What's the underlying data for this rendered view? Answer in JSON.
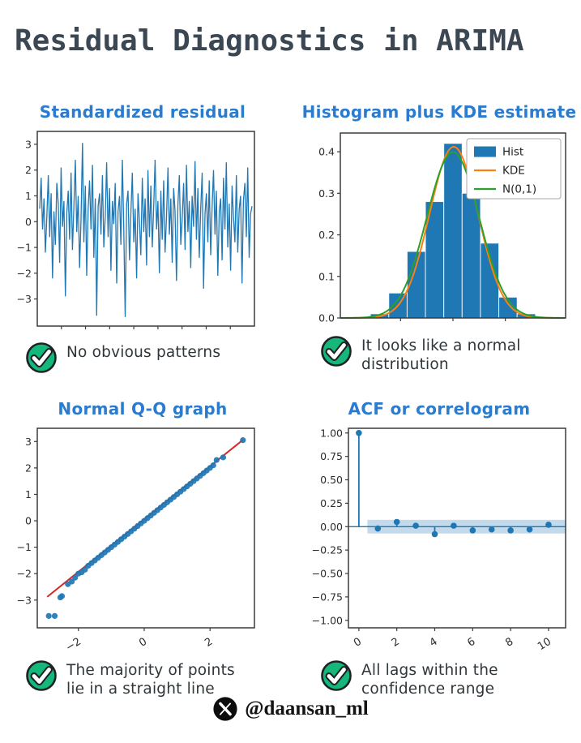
{
  "header": {
    "title": "Residual Diagnostics in ARIMA"
  },
  "footer": {
    "handle": "@daansan_ml",
    "logo": "x-logo"
  },
  "colors": {
    "accent_blue": "#1f77b4",
    "panel_title_blue": "#2b7bce",
    "kde_orange": "#ff7f0e",
    "normal_green": "#2ca02c",
    "qq_line_red": "#d62728",
    "check_green": "#14b87a",
    "ink": "#2f363a",
    "axis": "#3c3c3c",
    "band_blue": "#1f77b4"
  },
  "panels": [
    {
      "key": "residual",
      "title": "Standardized residual",
      "caption": "No obvious patterns"
    },
    {
      "key": "hist",
      "title": "Histogram plus KDE estimate",
      "caption": "It looks like a normal\ndistribution"
    },
    {
      "key": "qq",
      "title": "Normal Q-Q graph",
      "caption": "The majority of points\nlie in a straight line"
    },
    {
      "key": "acf",
      "title": "ACF or correlogram",
      "caption": "All lags within the\nconfidence range"
    }
  ],
  "chart_data": [
    {
      "type": "line",
      "title": "Standardized residual",
      "ylim": [
        -4.05,
        3.5
      ],
      "ytick_vals": [
        3,
        2,
        1,
        0,
        -1,
        -2,
        -3
      ],
      "ytick_labels": [
        "3",
        "2",
        "1",
        "0",
        "−1",
        "−2",
        "−3"
      ],
      "n_minor_xticks": 8,
      "line_color": "#1f77b4",
      "values": [
        0.5,
        1.7,
        -0.3,
        0.9,
        -1.2,
        0.2,
        1.8,
        -0.6,
        1.1,
        -2.2,
        0.4,
        -0.9,
        1.5,
        0.7,
        -1.6,
        2.1,
        -0.2,
        0.8,
        -2.9,
        0.3,
        1.2,
        -0.7,
        1.9,
        -1.1,
        0.6,
        2.4,
        -0.4,
        1.0,
        -1.8,
        0.1,
        3.05,
        -0.8,
        1.4,
        -2.1,
        0.5,
        1.6,
        -0.3,
        2.2,
        -1.4,
        0.9,
        -3.65,
        0.6,
        1.1,
        -0.5,
        1.8,
        -1.0,
        0.2,
        2.3,
        -0.6,
        1.3,
        -1.9,
        0.8,
        -0.1,
        1.5,
        -2.4,
        0.4,
        1.0,
        -0.9,
        2.4,
        -0.2,
        -3.7,
        0.7,
        1.2,
        -1.5,
        0.3,
        1.9,
        -0.8,
        0.5,
        -2.2,
        1.1,
        0.0,
        -1.3,
        1.7,
        -0.4,
        0.9,
        -1.7,
        2.0,
        -0.6,
        1.4,
        -1.0,
        0.6,
        2.4,
        -0.3,
        0.8,
        -2.0,
        1.2,
        -0.7,
        1.6,
        -1.2,
        0.2,
        2.1,
        -0.5,
        0.9,
        -1.6,
        1.3,
        0.4,
        -2.3,
        0.7,
        1.8,
        -0.9,
        0.1,
        1.5,
        -1.1,
        2.2,
        -0.4,
        0.8,
        -1.8,
        1.0,
        -0.2,
        2.35,
        -0.7,
        1.3,
        -1.4,
        0.5,
        1.9,
        -2.6,
        0.3,
        1.1,
        -0.8,
        1.6,
        -1.3,
        0.6,
        2.0,
        -0.5,
        1.2,
        -2.1,
        0.4,
        0.9,
        -1.5,
        1.7,
        -0.3,
        2.3,
        -1.0,
        0.7,
        -1.9,
        1.4,
        0.2,
        -0.8,
        1.8,
        -1.2,
        0.5,
        1.0,
        -2.4,
        0.8,
        1.5,
        -0.6,
        2.1,
        -1.4,
        0.3,
        0.6
      ]
    },
    {
      "type": "histogram",
      "title": "Histogram plus KDE estimate",
      "xlim": [
        -4.3,
        4.3
      ],
      "ylim": [
        0,
        0.445
      ],
      "ytick_vals": [
        0,
        0.1,
        0.2,
        0.3,
        0.4
      ],
      "ytick_labels": [
        "0.0",
        "0.1",
        "0.2",
        "0.3",
        "0.4"
      ],
      "xtick_vals": [
        -2,
        0,
        2
      ],
      "bin_edges": [
        -3.15,
        -2.45,
        -1.75,
        -1.05,
        -0.35,
        0.35,
        1.05,
        1.75,
        2.45,
        3.15
      ],
      "heights": [
        0.01,
        0.06,
        0.16,
        0.28,
        0.42,
        0.3,
        0.18,
        0.05,
        0.01
      ],
      "bar_color": "#1f77b4",
      "curves": [
        {
          "name": "KDE",
          "color": "#ff7f0e",
          "mean": 0.03,
          "sd": 0.93,
          "peak": 0.412
        },
        {
          "name": "N(0,1)",
          "color": "#2ca02c",
          "mean": 0,
          "sd": 1,
          "peak": 0.399
        }
      ],
      "legend": [
        "Hist",
        "KDE",
        "N(0,1)"
      ],
      "legend_position": "upper right"
    },
    {
      "type": "scatter",
      "title": "Normal Q-Q graph",
      "xlim": [
        -3.25,
        3.35
      ],
      "ylim": [
        -4.05,
        3.5
      ],
      "xtick_vals": [
        -2,
        0,
        2
      ],
      "xtick_labels": [
        "−2",
        "0",
        "2"
      ],
      "ytick_vals": [
        3,
        2,
        1,
        0,
        -1,
        -2,
        -3
      ],
      "ytick_labels": [
        "3",
        "2",
        "1",
        "0",
        "−1",
        "−2",
        "−3"
      ],
      "point_color": "#1f77b4",
      "line": {
        "x": [
          -2.95,
          3.0
        ],
        "y": [
          -2.88,
          3.06
        ],
        "color": "#d62728"
      },
      "x": [
        -2.9,
        -2.72,
        -2.55,
        -2.5,
        -2.32,
        -2.2,
        -2.1,
        -2.0,
        -1.9,
        -1.8,
        -1.7,
        -1.6,
        -1.5,
        -1.4,
        -1.3,
        -1.2,
        -1.1,
        -1.0,
        -0.9,
        -0.8,
        -0.7,
        -0.6,
        -0.5,
        -0.4,
        -0.3,
        -0.2,
        -0.1,
        0.0,
        0.1,
        0.2,
        0.3,
        0.4,
        0.5,
        0.6,
        0.7,
        0.8,
        0.9,
        1.0,
        1.1,
        1.2,
        1.3,
        1.4,
        1.5,
        1.6,
        1.7,
        1.8,
        1.9,
        2.0,
        2.1,
        2.2,
        2.4,
        3.0
      ],
      "y": [
        -3.6,
        -3.6,
        -2.9,
        -2.85,
        -2.4,
        -2.3,
        -2.15,
        -2.0,
        -1.95,
        -1.85,
        -1.7,
        -1.6,
        -1.5,
        -1.4,
        -1.3,
        -1.2,
        -1.1,
        -1.0,
        -0.9,
        -0.8,
        -0.7,
        -0.6,
        -0.5,
        -0.4,
        -0.3,
        -0.2,
        -0.1,
        0.0,
        0.1,
        0.2,
        0.3,
        0.4,
        0.5,
        0.6,
        0.7,
        0.8,
        0.9,
        1.0,
        1.1,
        1.2,
        1.3,
        1.4,
        1.5,
        1.6,
        1.7,
        1.8,
        1.9,
        2.0,
        2.1,
        2.3,
        2.4,
        3.05
      ]
    },
    {
      "type": "stem",
      "title": "ACF or correlogram",
      "xlim": [
        -0.55,
        10.9
      ],
      "ylim": [
        -1.08,
        1.05
      ],
      "ytick_vals": [
        1,
        0.75,
        0.5,
        0.25,
        0,
        -0.25,
        -0.5,
        -0.75,
        -1
      ],
      "ytick_labels": [
        "1.00",
        "0.75",
        "0.50",
        "0.25",
        "0.00",
        "−0.25",
        "−0.50",
        "−0.75",
        "−1.00"
      ],
      "xtick_vals": [
        0,
        2,
        4,
        6,
        8,
        10
      ],
      "xtick_labels": [
        "0",
        "2",
        "4",
        "6",
        "8",
        "10"
      ],
      "lags": [
        0,
        1,
        2,
        3,
        4,
        5,
        6,
        7,
        8,
        9,
        10
      ],
      "acf_values": [
        1.0,
        -0.02,
        0.05,
        0.01,
        -0.08,
        0.01,
        -0.04,
        -0.03,
        -0.04,
        -0.03,
        0.02
      ],
      "stem_color": "#1f77b4",
      "conf_band": {
        "x0": 0.45,
        "level": 0.073
      }
    }
  ]
}
